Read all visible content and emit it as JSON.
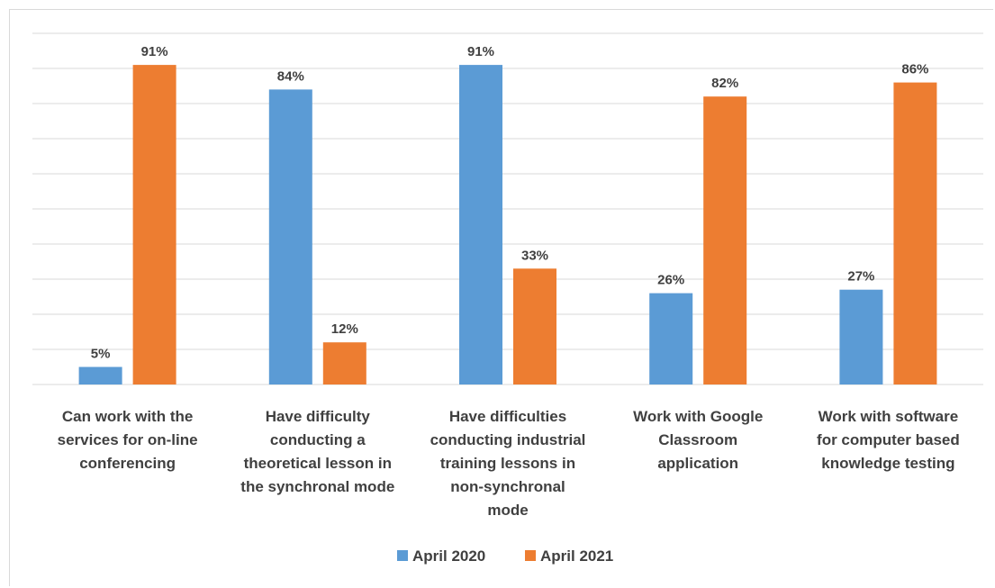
{
  "chart_data": {
    "type": "bar",
    "categories": [
      [
        "Can work with the",
        "services for on-line",
        "conferencing"
      ],
      [
        "Have difficulty",
        "conducting a",
        "theoretical lesson in",
        "the synchronal mode"
      ],
      [
        "Have difficulties",
        "conducting industrial",
        "training lessons in",
        "non-synchronal",
        "mode"
      ],
      [
        "Work with Google",
        "Classroom",
        "application"
      ],
      [
        "Work with software",
        "for computer based",
        "knowledge testing"
      ]
    ],
    "series": [
      {
        "name": "April 2020",
        "color": "#5b9bd5",
        "values": [
          5,
          84,
          91,
          26,
          27
        ],
        "labels": [
          "5%",
          "84%",
          "91%",
          "26%",
          "27%"
        ]
      },
      {
        "name": "April 2021",
        "color": "#ed7d31",
        "values": [
          91,
          12,
          33,
          82,
          86
        ],
        "labels": [
          "91%",
          "12%",
          "33%",
          "82%",
          "86%"
        ]
      }
    ],
    "ylim": [
      0,
      100
    ],
    "grid": true,
    "legend": "bottom",
    "gridline_color": "#d9d9d9"
  }
}
